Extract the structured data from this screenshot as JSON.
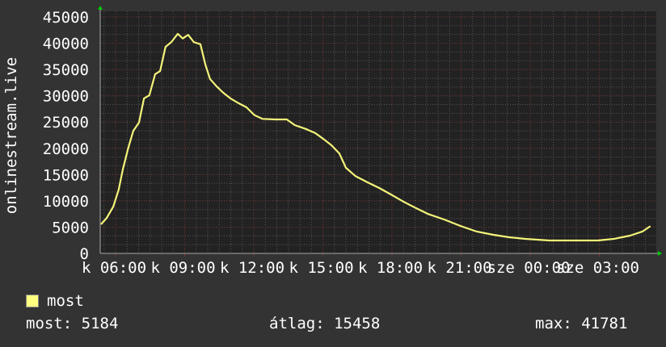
{
  "chart_data": {
    "type": "line",
    "title": "",
    "ylabel": "onlinestream.live",
    "xlabel": "",
    "ylim": [
      0,
      45000
    ],
    "yticks": [
      0,
      5000,
      10000,
      15000,
      20000,
      25000,
      30000,
      35000,
      40000,
      45000
    ],
    "xtick_labels": [
      "k 06:00",
      "k 09:00",
      "k 12:00",
      "k 15:00",
      "k 18:00",
      "k 21:00",
      "sze 00:00",
      "sze 03:00"
    ],
    "grid": true,
    "colors": {
      "background": "#333333",
      "plot_background": "#222222",
      "line": "#f4f47a",
      "major_grid": "#7a3535",
      "minor_grid": "#555555",
      "arrow": "#00cc00"
    },
    "series": [
      {
        "name": "most",
        "x": [
          "05:22",
          "05:37",
          "05:54",
          "06:08",
          "06:19",
          "06:32",
          "06:46",
          "07:01",
          "07:14",
          "07:28",
          "07:43",
          "07:56",
          "08:10",
          "08:25",
          "08:42",
          "08:55",
          "09:09",
          "09:24",
          "09:41",
          "09:54",
          "10:06",
          "10:23",
          "10:40",
          "10:59",
          "11:20",
          "11:41",
          "12:02",
          "12:23",
          "12:55",
          "13:26",
          "13:47",
          "14:15",
          "14:40",
          "15:01",
          "15:22",
          "15:43",
          "16:00",
          "16:25",
          "16:57",
          "17:28",
          "18:00",
          "18:31",
          "19:03",
          "19:34",
          "20:16",
          "20:59",
          "21:41",
          "22:23",
          "23:05",
          "23:47",
          "00:50",
          "01:53",
          "02:56",
          "03:38",
          "04:20",
          "04:52",
          "05:13"
        ],
        "values": [
          5530,
          6760,
          8900,
          12100,
          16000,
          19800,
          23300,
          24900,
          29500,
          30100,
          34100,
          34700,
          39300,
          40200,
          41781,
          40900,
          41600,
          40200,
          39800,
          35900,
          33200,
          31800,
          30600,
          29500,
          28600,
          27800,
          26300,
          25600,
          25500,
          25500,
          24400,
          23700,
          22900,
          21800,
          20600,
          19000,
          16300,
          14700,
          13500,
          12400,
          11100,
          9800,
          8600,
          7500,
          6450,
          5200,
          4150,
          3550,
          3070,
          2760,
          2460,
          2460,
          2460,
          2760,
          3380,
          4150,
          5184
        ]
      }
    ]
  },
  "legend": {
    "label": "most",
    "color": "#ffff80"
  },
  "stats": {
    "current": "most: 5184",
    "average": "átlag: 15458",
    "max": "max: 41781"
  }
}
